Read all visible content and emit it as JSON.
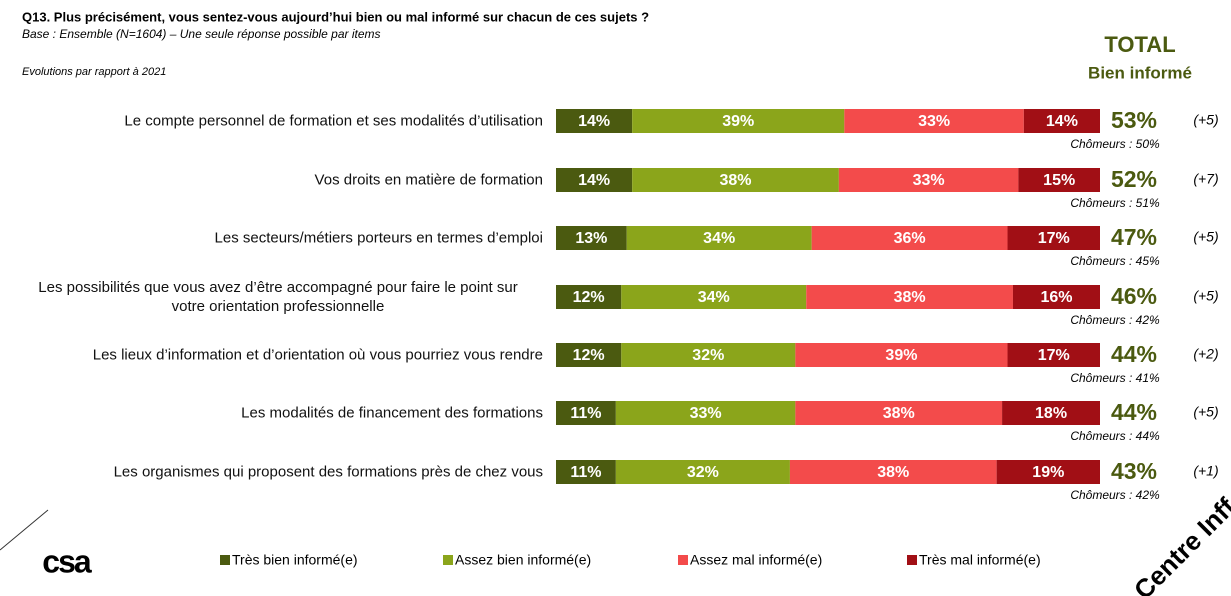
{
  "chart_data": {
    "type": "stacked_bar_horizontal",
    "title": "Q13. Plus précisément, vous sentez-vous aujourd’hui bien ou mal informé sur chacun de ces sujets ?",
    "subtitle": "Base : Ensemble (N=1604) – Une seule réponse possible par items",
    "note": "Evolutions par rapport à 2021",
    "total_title": "TOTAL",
    "total_subtitle": "Bien informé",
    "categories": [
      "Le compte personnel de formation et ses modalités d’utilisation",
      "Vos droits en matière de formation",
      "Les secteurs/métiers porteurs en termes d’emploi",
      "Les possibilités que vous avez d’être accompagné pour faire le point sur\nvotre orientation professionnelle",
      "Les lieux d’information et d’orientation où vous pourriez vous rendre",
      "Les modalités de financement des formations",
      "Les organismes qui proposent des formations près de chez vous"
    ],
    "xlim": [
      0,
      100
    ],
    "series": [
      {
        "name": "Très bien informé(e)",
        "color": "#4b5a10",
        "values": [
          14,
          14,
          13,
          12,
          12,
          11,
          11
        ],
        "value_labels": [
          "14%",
          "14%",
          "13%",
          "12%",
          "12%",
          "11%",
          "11%"
        ]
      },
      {
        "name": "Assez bien informé(e)",
        "color": "#8ba51b",
        "values": [
          39,
          38,
          34,
          34,
          32,
          33,
          32
        ],
        "value_labels": [
          "39%",
          "38%",
          "34%",
          "34%",
          "32%",
          "33%",
          "32%"
        ]
      },
      {
        "name": "Assez mal informé(e)",
        "color": "#f34b4b",
        "values": [
          33,
          33,
          36,
          38,
          39,
          38,
          38
        ],
        "value_labels": [
          "33%",
          "33%",
          "36%",
          "38%",
          "39%",
          "38%",
          "38%"
        ]
      },
      {
        "name": "Très mal informé(e)",
        "color": "#a10f15",
        "values": [
          14,
          15,
          17,
          16,
          17,
          18,
          19
        ],
        "value_labels": [
          "14%",
          "15%",
          "17%",
          "16%",
          "17%",
          "18%",
          "19%"
        ]
      }
    ],
    "totals": {
      "color": "#4b5a10",
      "values": [
        53,
        52,
        47,
        46,
        44,
        44,
        43
      ],
      "value_labels": [
        "53%",
        "52%",
        "47%",
        "46%",
        "44%",
        "44%",
        "43%"
      ]
    },
    "evolutions": [
      "(+5)",
      "(+7)",
      "(+5)",
      "(+5)",
      "(+2)",
      "(+5)",
      "(+1)"
    ],
    "chomeurs": [
      "Chômeurs : 50%",
      "Chômeurs : 51%",
      "Chômeurs : 45%",
      "Chômeurs : 42%",
      "Chômeurs : 41%",
      "Chômeurs : 44%",
      "Chômeurs : 42%"
    ],
    "logo": "csa",
    "watermark": "Centre Inff"
  }
}
